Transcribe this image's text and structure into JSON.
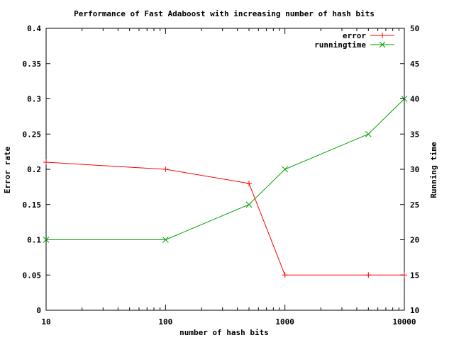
{
  "chart_data": {
    "type": "line",
    "title": "Performance of Fast Adaboost with increasing number of hash bits",
    "xlabel": "number of hash bits",
    "ylabel": "Error rate",
    "y2label": "Running time",
    "xscale": "log",
    "xlim": [
      10,
      10000
    ],
    "ylim": [
      0,
      0.4
    ],
    "y2lim": [
      10,
      50
    ],
    "xticks": [
      "10",
      "100",
      "1000",
      "10000"
    ],
    "yticks": [
      "0",
      "0.05",
      "0.1",
      "0.15",
      "0.2",
      "0.25",
      "0.3",
      "0.35",
      "0.4"
    ],
    "y2ticks": [
      "10",
      "15",
      "20",
      "25",
      "30",
      "35",
      "40",
      "45",
      "50"
    ],
    "grid": false,
    "legend": "top-right",
    "x": [
      10,
      100,
      500,
      1000,
      5000,
      10000
    ],
    "series": [
      {
        "name": "error",
        "axis": "left",
        "color": "#ff0000",
        "marker": "plus",
        "values": [
          0.21,
          0.2,
          0.18,
          0.05,
          0.05,
          0.05
        ]
      },
      {
        "name": "runningtime",
        "axis": "right",
        "color": "#00a000",
        "marker": "cross",
        "values": [
          20,
          20,
          25,
          30,
          35,
          40
        ]
      }
    ]
  }
}
